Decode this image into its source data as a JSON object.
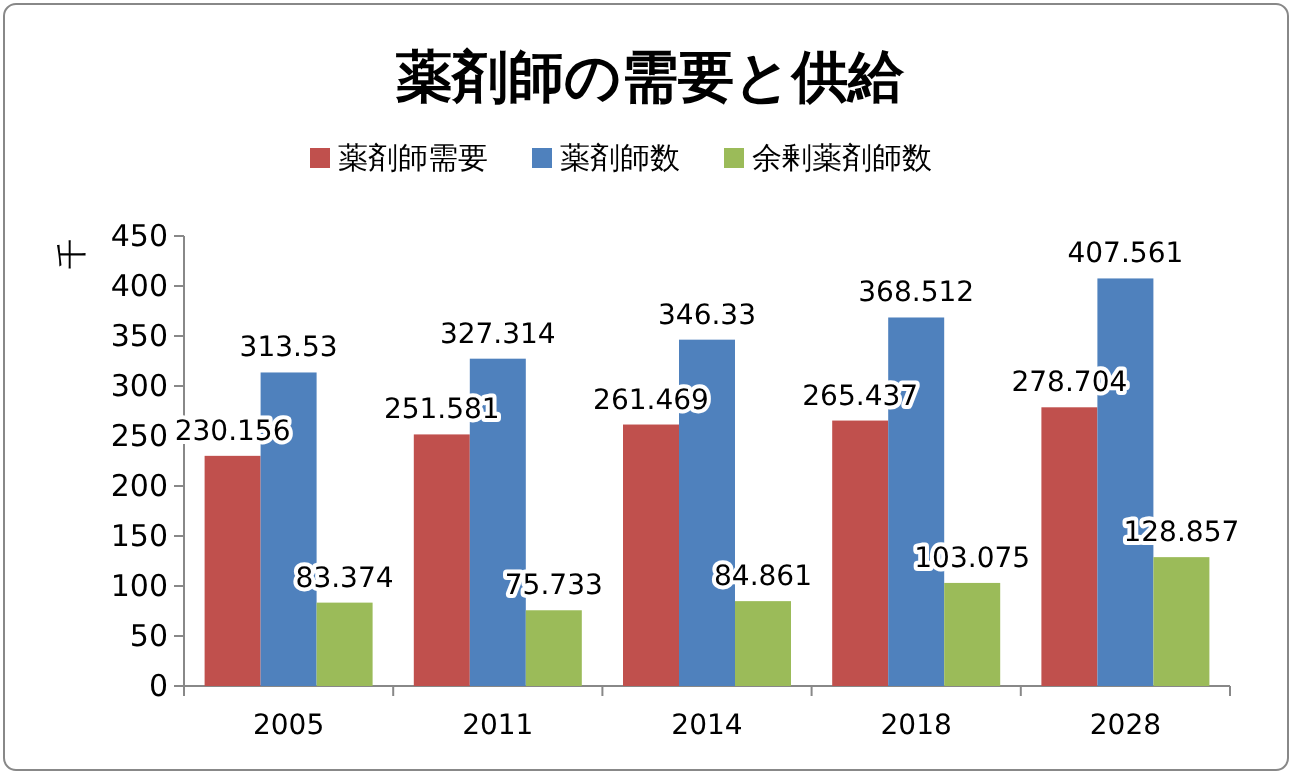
{
  "chart_data": {
    "type": "bar",
    "title": "薬剤師の需要と供給",
    "ylabel": "千",
    "categories": [
      "2005",
      "2011",
      "2014",
      "2018",
      "2028"
    ],
    "series": [
      {
        "name": "薬剤師需要",
        "color": "#c0504d",
        "values": [
          230.156,
          251.581,
          261.469,
          265.437,
          278.704
        ]
      },
      {
        "name": "薬剤師数",
        "color": "#4f81bd",
        "values": [
          313.53,
          327.314,
          346.33,
          368.512,
          407.561
        ]
      },
      {
        "name": "余剰薬剤師数",
        "color": "#9bbb59",
        "values": [
          83.374,
          75.733,
          84.861,
          103.075,
          128.857
        ]
      }
    ],
    "ylim": [
      0,
      450
    ],
    "yticks": [
      0,
      50,
      100,
      150,
      200,
      250,
      300,
      350,
      400,
      450
    ],
    "data_labels": true,
    "legend": "top",
    "grid": false
  }
}
